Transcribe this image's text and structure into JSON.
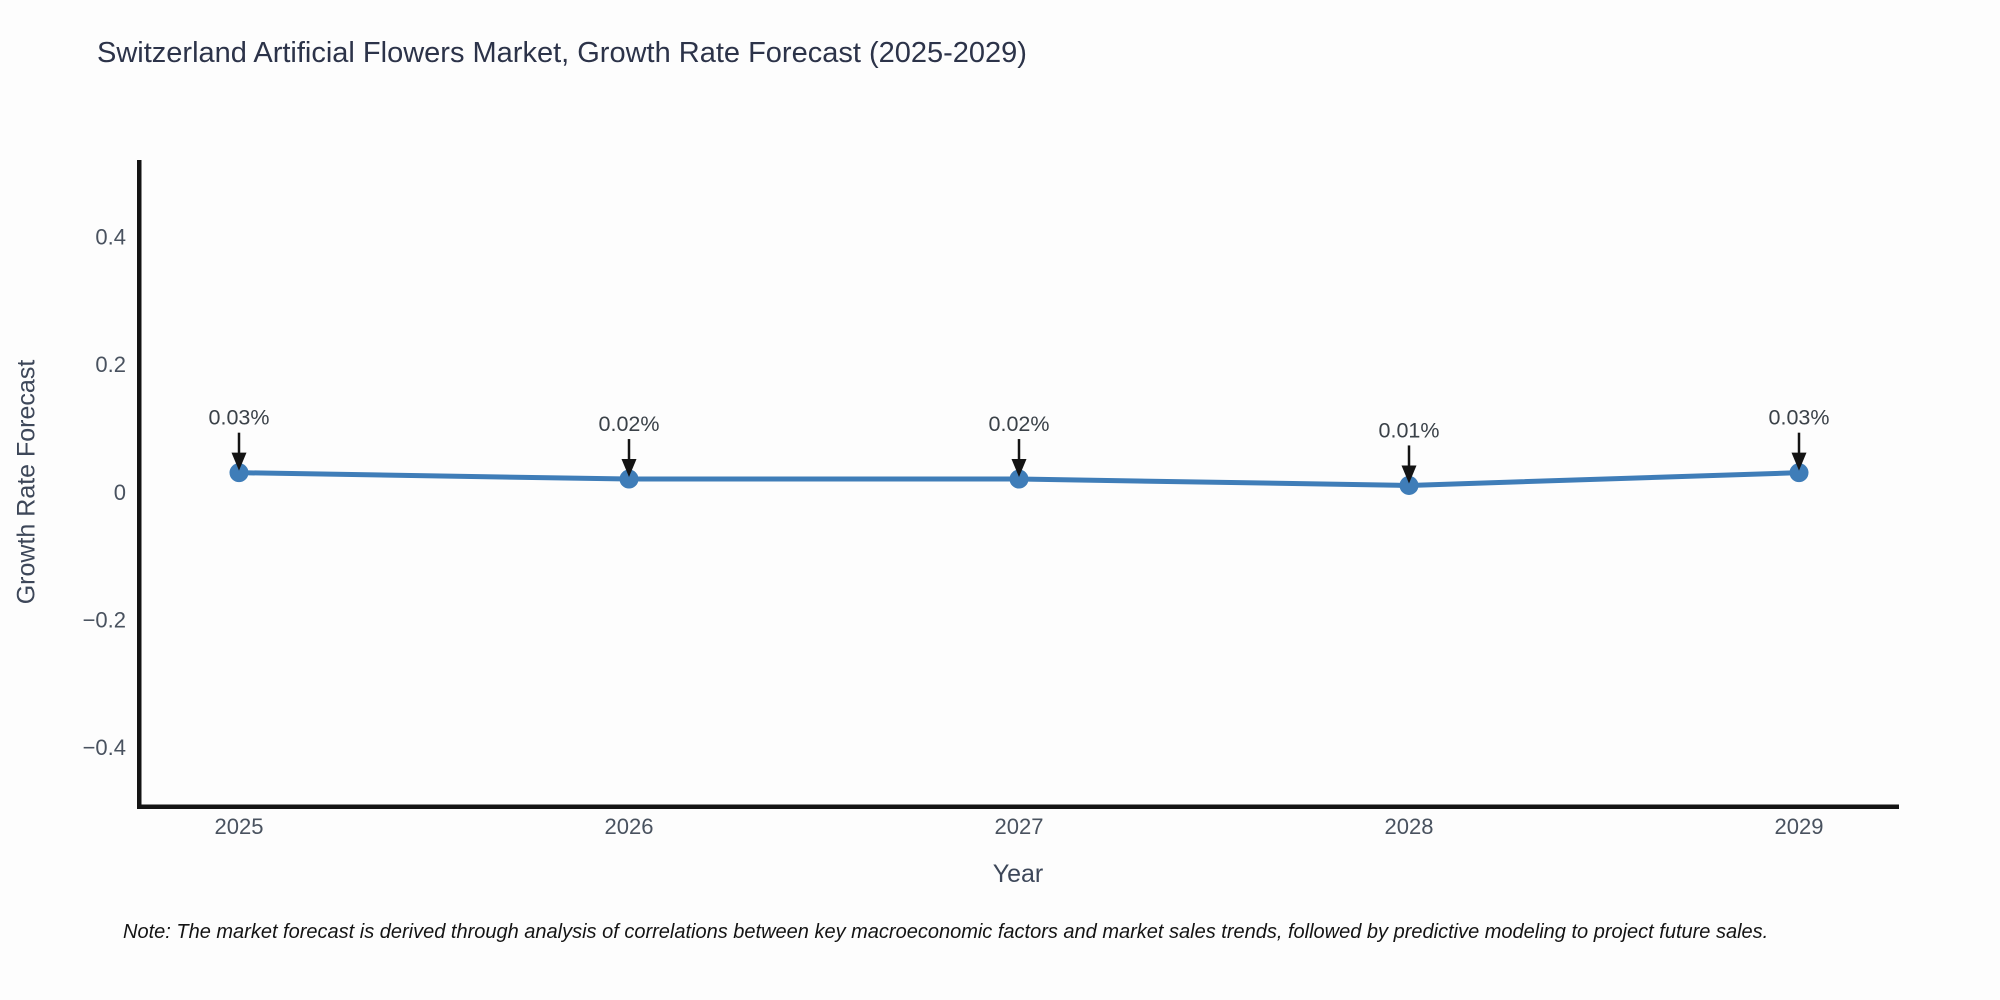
{
  "figure": {
    "note": "Note: The market forecast is derived through analysis of correlations between key macroeconomic factors and market sales trends, followed by predictive modeling to project future sales."
  },
  "chart_data": {
    "type": "line",
    "title": "Switzerland Artificial Flowers Market, Growth Rate Forecast (2025-2029)",
    "xlabel": "Year",
    "ylabel": "Growth Rate Forecast",
    "categories": [
      "2025",
      "2026",
      "2027",
      "2028",
      "2029"
    ],
    "series": [
      {
        "name": "Growth Rate Forecast",
        "values": [
          0.03,
          0.02,
          0.02,
          0.01,
          0.03
        ],
        "point_labels": [
          "0.03%",
          "0.02%",
          "0.02%",
          "0.01%",
          "0.03%"
        ]
      }
    ],
    "yticks": [
      0.4,
      0.2,
      0,
      -0.2,
      -0.4
    ],
    "ytick_labels": [
      "0.4",
      "0.2",
      "0",
      "−0.2",
      "−0.4"
    ],
    "ylim": [
      -0.49,
      0.52
    ],
    "grid": false,
    "legend_position": "none",
    "annotation_style": "value label above each point with downward black arrow",
    "colors": {
      "line": "#3f7db8",
      "marker": "#3f7db8",
      "arrow": "#141414",
      "spine": "#141414",
      "title_text": "#2c3349",
      "axis_label_text": "#3d4759",
      "tick_text": "#49525f",
      "annotation_text": "#3a4148",
      "background": "#fdfdfd"
    }
  }
}
